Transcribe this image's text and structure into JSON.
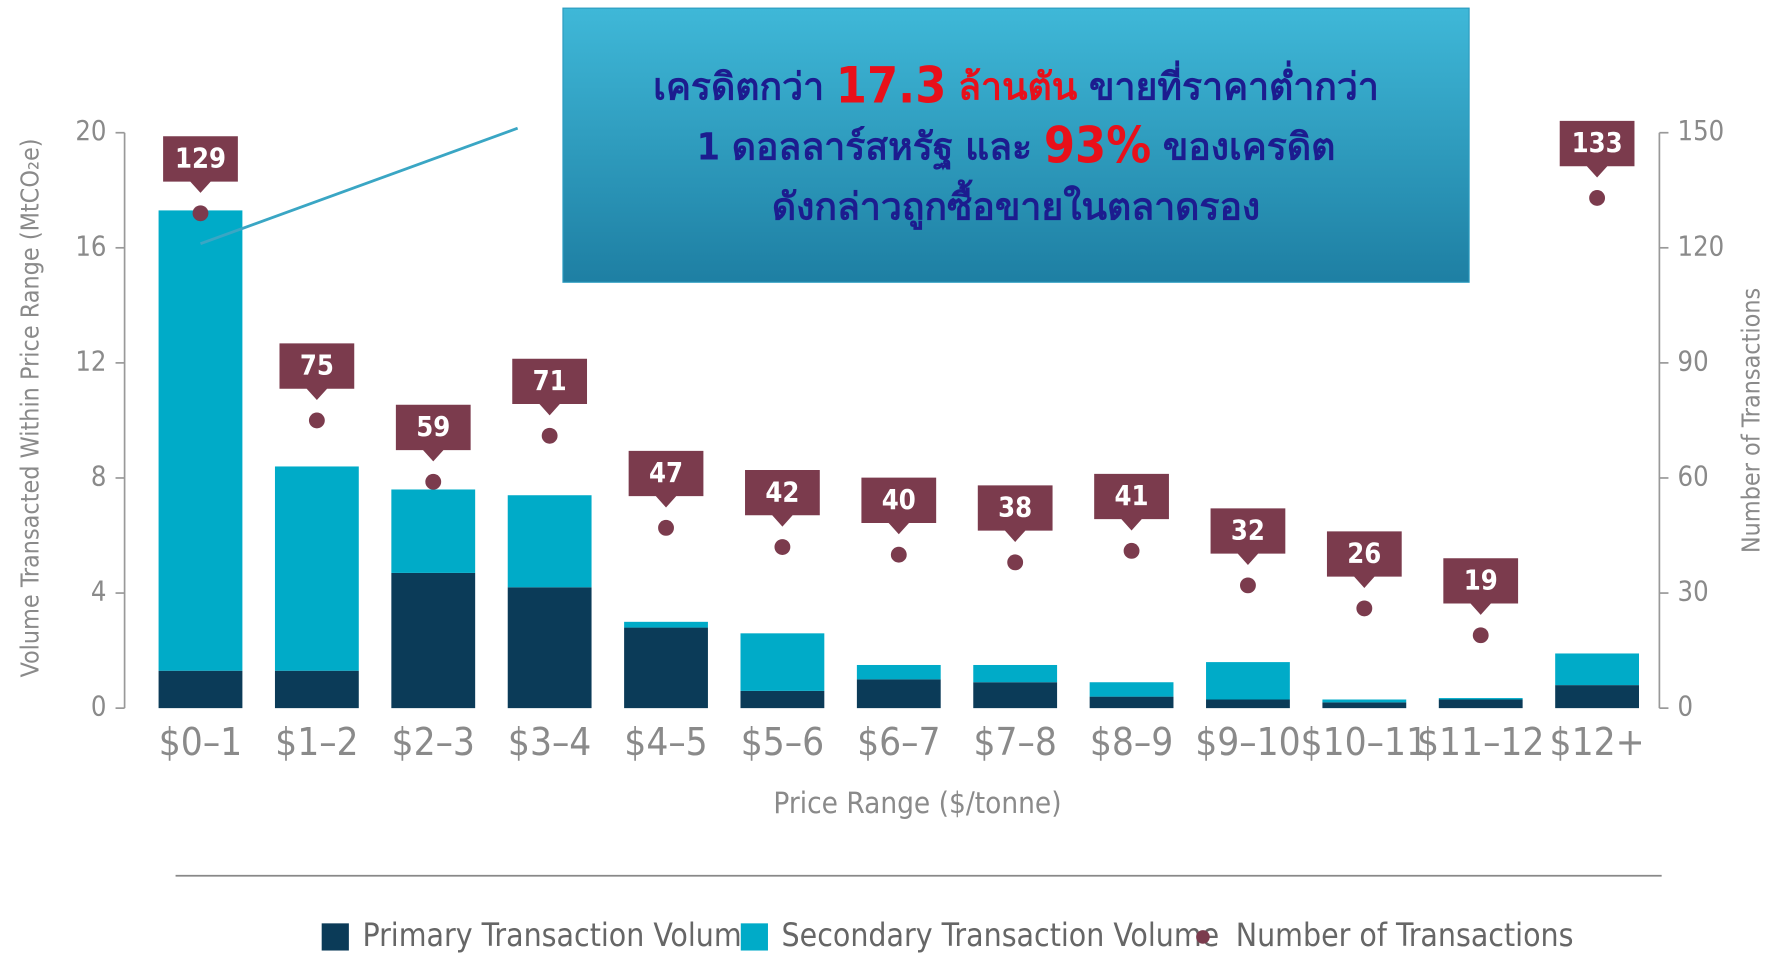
{
  "chart_data": {
    "type": "bar",
    "x_label": "Price Range ($/tonne)",
    "y_label": "Volume Transacted Within Price Range (MtCO₂e)",
    "y2_label": "Number of Transactions",
    "categories": [
      "$0–1",
      "$1–2",
      "$2–3",
      "$3–4",
      "$4–5",
      "$5–6",
      "$6–7",
      "$7–8",
      "$8–9",
      "$9–10",
      "$10–11",
      "$11–12",
      "$12+"
    ],
    "series": [
      {
        "name": "Primary Transaction Volume",
        "color": "#0b3b58",
        "values": [
          1.3,
          1.3,
          4.7,
          4.2,
          2.8,
          0.6,
          1.0,
          0.9,
          0.4,
          0.3,
          0.2,
          0.3,
          0.8
        ]
      },
      {
        "name": "Secondary Transaction Volume",
        "color": "#00abc8",
        "values": [
          16.0,
          7.1,
          2.9,
          3.2,
          0.2,
          2.0,
          0.5,
          0.6,
          0.5,
          1.3,
          0.1,
          0.05,
          1.1
        ]
      },
      {
        "name": "Number of Transactions",
        "color": "#7b3b4d",
        "axis": "y2",
        "values": [
          129,
          75,
          59,
          71,
          47,
          42,
          40,
          38,
          41,
          32,
          26,
          19,
          133
        ]
      }
    ],
    "ylim": [
      0,
      20
    ],
    "yticks": [
      0,
      4,
      8,
      12,
      16,
      20
    ],
    "y2lim": [
      0,
      150
    ],
    "y2ticks": [
      0,
      30,
      60,
      90,
      120,
      150
    ],
    "annotation": [
      [
        {
          "text": "เครดิตกว่า ",
          "color": "#1c1c8f"
        },
        {
          "text": "17.3",
          "color": "#e8101a"
        },
        {
          "text": " ล้านตัน",
          "color": "#e8101a"
        },
        {
          "text": " ขายที่ราคาต่ำกว่า",
          "color": "#1c1c8f"
        }
      ],
      [
        {
          "text": "1 ดอลลาร์สหรัฐ และ ",
          "color": "#1c1c8f"
        },
        {
          "text": "93%",
          "color": "#e8101a"
        },
        {
          "text": " ของเครดิต",
          "color": "#1c1c8f"
        }
      ],
      [
        {
          "text": "ดังกล่าวถูกซื้อขายในตลาดรอง",
          "color": "#1c1c8f"
        }
      ]
    ]
  }
}
